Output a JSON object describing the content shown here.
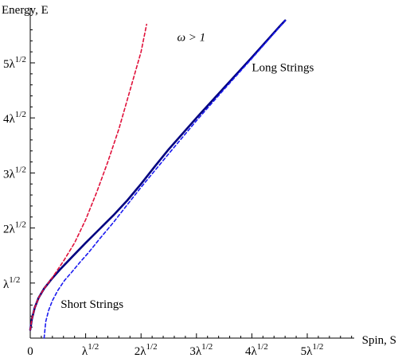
{
  "chart_data": {
    "type": "line",
    "title": "",
    "xlabel": "Spin, S",
    "ylabel": "Energy, E",
    "x_unit": "λ^1/2",
    "y_unit": "λ^1/2",
    "xlim": [
      0,
      5.9
    ],
    "ylim": [
      0,
      5.8
    ],
    "grid": false,
    "x_ticks": [
      {
        "value": 0,
        "label": "0",
        "sup": ""
      },
      {
        "value": 1,
        "label": "λ",
        "sup": "1/2"
      },
      {
        "value": 2,
        "label": "2λ",
        "sup": "1/2"
      },
      {
        "value": 3,
        "label": "3λ",
        "sup": "1/2"
      },
      {
        "value": 4,
        "label": "4λ",
        "sup": "1/2"
      },
      {
        "value": 5,
        "label": "5λ",
        "sup": "1/2"
      }
    ],
    "y_ticks": [
      {
        "value": 1,
        "label": "λ",
        "sup": "1/2"
      },
      {
        "value": 2,
        "label": "2λ",
        "sup": "1/2"
      },
      {
        "value": 3,
        "label": "3λ",
        "sup": "1/2"
      },
      {
        "value": 4,
        "label": "4λ",
        "sup": "1/2"
      },
      {
        "value": 5,
        "label": "5λ",
        "sup": "1/2"
      }
    ],
    "series": [
      {
        "style": "solid",
        "color": "#000080",
        "x": [
          0.0,
          0.03,
          0.08,
          0.15,
          0.25,
          0.4,
          0.55,
          0.75,
          1.0,
          1.25,
          1.5,
          1.75,
          2.0,
          2.25,
          2.5,
          3.0,
          3.5,
          4.0,
          4.5,
          4.6
        ],
        "y": [
          0.15,
          0.35,
          0.55,
          0.73,
          0.9,
          1.09,
          1.26,
          1.47,
          1.73,
          1.98,
          2.23,
          2.5,
          2.8,
          3.12,
          3.43,
          4.0,
          4.55,
          5.1,
          5.66,
          5.77
        ]
      },
      {
        "style": "dashed",
        "color": "#e0103a",
        "x": [
          0.0,
          0.03,
          0.08,
          0.15,
          0.25,
          0.4,
          0.6,
          0.8,
          1.0,
          1.2,
          1.4,
          1.6,
          1.8,
          2.0,
          2.1
        ],
        "y": [
          0.15,
          0.35,
          0.55,
          0.73,
          0.9,
          1.1,
          1.4,
          1.73,
          2.15,
          2.65,
          3.2,
          3.8,
          4.5,
          5.2,
          5.7
        ]
      },
      {
        "style": "dashed",
        "color": "#1a1af0",
        "x": [
          0.25,
          0.28,
          0.33,
          0.4,
          0.5,
          0.62,
          0.75,
          0.9,
          1.05,
          1.25,
          1.5,
          1.75,
          2.0,
          2.5,
          3.0,
          3.5,
          4.0,
          4.5,
          4.6
        ],
        "y": [
          0.0,
          0.3,
          0.5,
          0.68,
          0.87,
          1.05,
          1.2,
          1.38,
          1.55,
          1.8,
          2.1,
          2.42,
          2.74,
          3.35,
          3.95,
          4.52,
          5.08,
          5.65,
          5.77
        ]
      }
    ],
    "annotations": [
      {
        "text": "ω > 1",
        "x": 2.65,
        "y": 5.4
      },
      {
        "text": "Long Strings",
        "x": 4.0,
        "y": 4.85
      },
      {
        "text": "Short Strings",
        "x": 0.55,
        "y": 0.55
      }
    ]
  }
}
